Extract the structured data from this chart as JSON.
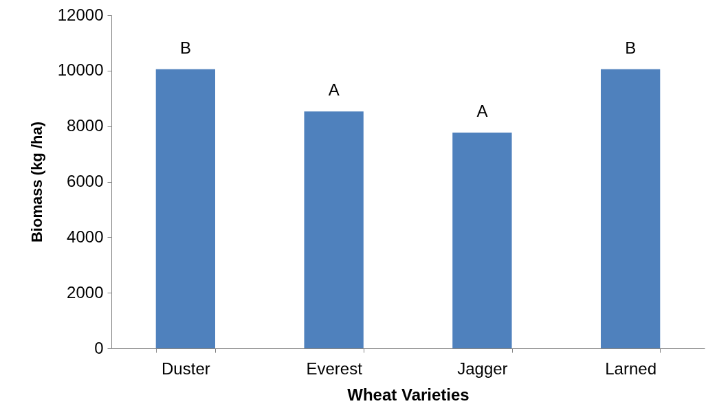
{
  "chart_data": {
    "type": "bar",
    "xlabel": "Wheat Varieties",
    "ylabel": "Biomass (kg /ha)",
    "categories": [
      "Duster",
      "Everest",
      "Jagger",
      "Larned"
    ],
    "values": [
      10050,
      8530,
      7770,
      10050
    ],
    "color": "#4f81bd",
    "ylim": [
      0,
      12000
    ],
    "yticks": [
      0,
      2000,
      4000,
      6000,
      8000,
      10000,
      12000
    ],
    "grid": false,
    "annotations": [
      {
        "text": "B",
        "x": "Duster",
        "y": 10050
      },
      {
        "text": "A",
        "x": "Everest",
        "y": 8530
      },
      {
        "text": "A",
        "x": "Jagger",
        "y": 7770
      },
      {
        "text": "B",
        "x": "Larned",
        "y": 10050
      }
    ]
  }
}
